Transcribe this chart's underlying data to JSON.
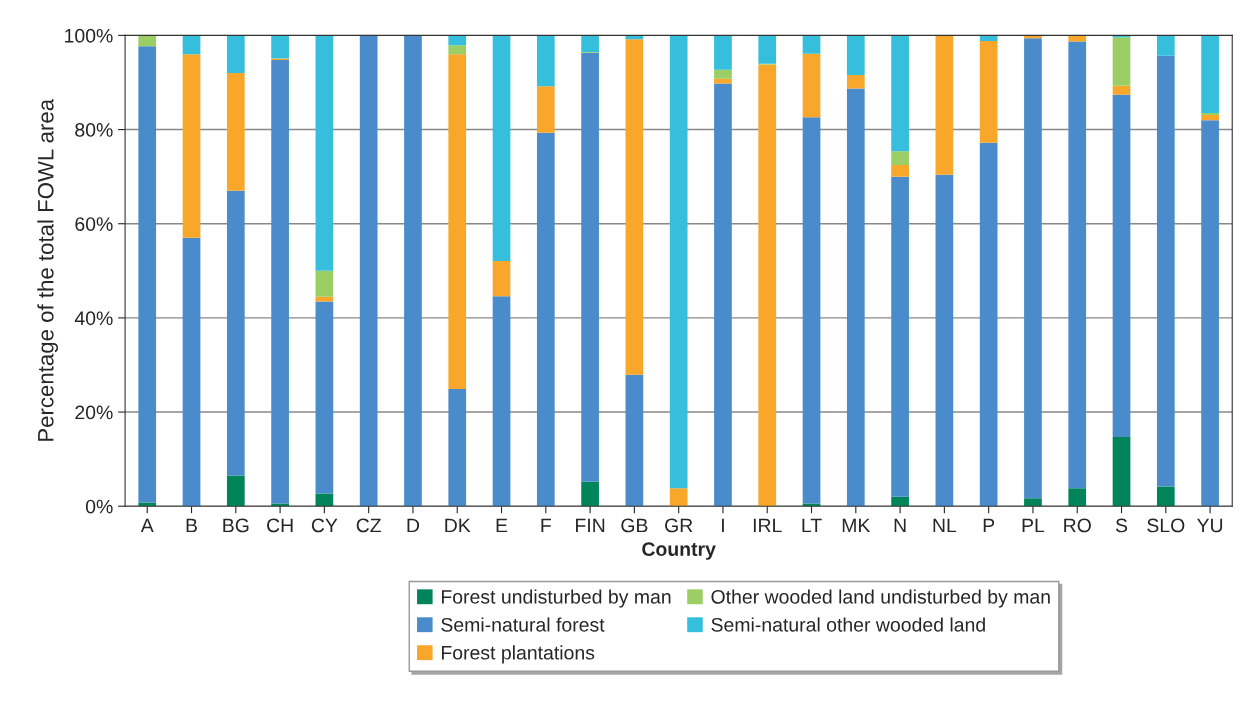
{
  "chart_data": {
    "type": "bar",
    "stacked": true,
    "xlabel": "Country",
    "ylabel": "Percentage of the total FOWL area",
    "categories": [
      "A",
      "B",
      "BG",
      "CH",
      "CY",
      "CZ",
      "D",
      "DK",
      "E",
      "F",
      "FIN",
      "GB",
      "GR",
      "I",
      "IRL",
      "LT",
      "MK",
      "N",
      "NL",
      "P",
      "PL",
      "RO",
      "S",
      "SLO",
      "YU"
    ],
    "series": [
      {
        "name": "Forest undisturbed by man",
        "color": "#00855a",
        "values": [
          0.8,
          0,
          6.5,
          0.6,
          2.7,
          0,
          0,
          null,
          0,
          null,
          5.2,
          0,
          0,
          0,
          0,
          0.6,
          0,
          2.0,
          0,
          0,
          1.7,
          3.8,
          14.7,
          4.2,
          null
        ]
      },
      {
        "name": "Semi-natural forest",
        "color": "#4a8ccb",
        "values": [
          96.9,
          57.0,
          60.5,
          94.2,
          40.8,
          100,
          100,
          24.9,
          44.6,
          79.3,
          91.1,
          27.9,
          0,
          89.8,
          0,
          82.0,
          88.7,
          68.0,
          70.4,
          77.2,
          97.7,
          94.9,
          72.7,
          91.5,
          82.0
        ]
      },
      {
        "name": "Forest plantations",
        "color": "#f9a72b",
        "values": [
          0,
          39.0,
          25.0,
          0.3,
          1.0,
          0,
          0,
          71.1,
          7.5,
          9.9,
          0,
          71.3,
          3.8,
          1.0,
          93.8,
          13.5,
          2.9,
          2.5,
          29.6,
          21.6,
          0.6,
          1.3,
          1.9,
          0,
          1.1
        ]
      },
      {
        "name": "Other wooded land undisturbed by man",
        "color": "#9bcf65",
        "values": [
          2.3,
          0,
          0,
          0,
          5.5,
          0,
          0,
          1.9,
          0,
          0,
          0.2,
          0,
          0,
          1.9,
          0.2,
          0,
          0,
          2.9,
          0,
          0,
          0,
          0,
          10.3,
          0,
          0.4
        ]
      },
      {
        "name": "Semi-natural other wooded land",
        "color": "#35bfdd",
        "values": [
          0,
          4.0,
          8.0,
          4.9,
          50.0,
          0,
          0,
          2.0,
          47.9,
          10.7,
          3.5,
          0.8,
          96.2,
          7.3,
          6.0,
          3.9,
          8.4,
          24.6,
          0,
          1.2,
          0,
          0,
          0.4,
          4.3,
          16.4
        ]
      }
    ],
    "ylim": [
      0,
      100
    ],
    "yticks": [
      {
        "value": 0,
        "label": "0%"
      },
      {
        "value": 20,
        "label": "20%"
      },
      {
        "value": 40,
        "label": "40%"
      },
      {
        "value": 60,
        "label": "60%"
      },
      {
        "value": 80,
        "label": "80%"
      },
      {
        "value": 100,
        "label": "100%"
      }
    ],
    "grid": "y",
    "legend": "bottom"
  }
}
